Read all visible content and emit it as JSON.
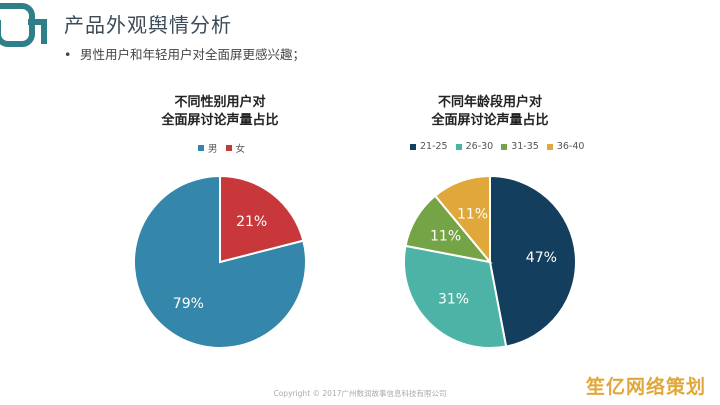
{
  "header": {
    "title": "产品外观舆情分析",
    "bullet": "•",
    "subtitle": "男性用户和年轻用户对全面屏更感兴趣；"
  },
  "footer": {
    "copyright": "Copyright © 2017广州数润故事信息科技有限公司"
  },
  "watermark": "笙亿网络策划",
  "colors": {
    "teal_dark": "#2f7f88",
    "male": "#3487aa",
    "female": "#c8383a",
    "age_21_25": "#143e5e",
    "age_26_30": "#4db3a6",
    "age_31_35": "#74a445",
    "age_36_40": "#e0a73a"
  },
  "chart_data": [
    {
      "type": "pie",
      "title_line1": "不同性别用户对",
      "title_line2": "全面屏讨论声量占比",
      "legend_placement": "top",
      "categories": [
        "男",
        "女"
      ],
      "values": [
        79,
        21
      ],
      "labels": [
        "79%",
        "21%"
      ],
      "colors": [
        "#3487aa",
        "#c8383a"
      ]
    },
    {
      "type": "pie",
      "title_line1": "不同年龄段用户对",
      "title_line2": "全面屏讨论声量占比",
      "legend_placement": "top",
      "categories": [
        "21-25",
        "26-30",
        "31-35",
        "36-40"
      ],
      "values": [
        47,
        31,
        11,
        11
      ],
      "labels": [
        "47%",
        "31%",
        "11%",
        "11%"
      ],
      "colors": [
        "#143e5e",
        "#4db3a6",
        "#74a445",
        "#e0a73a"
      ]
    }
  ]
}
